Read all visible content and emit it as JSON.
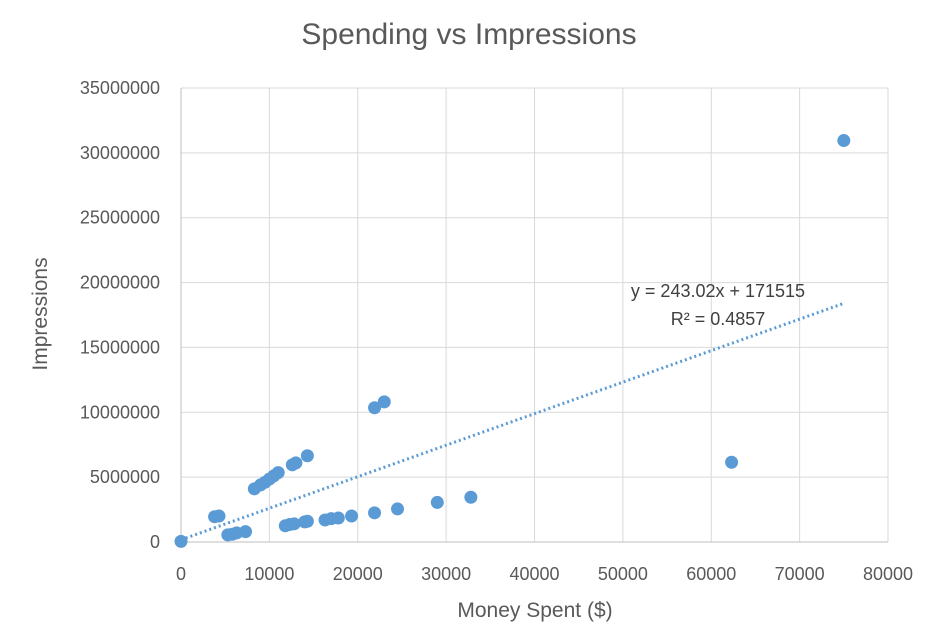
{
  "chart_data": {
    "type": "scatter",
    "title": "Spending vs Impressions",
    "xlabel": "Money Spent ($)",
    "ylabel": "Impressions",
    "xlim": [
      0,
      80000
    ],
    "ylim": [
      0,
      35000000
    ],
    "x_ticks": [
      "0",
      "10000",
      "20000",
      "30000",
      "40000",
      "50000",
      "60000",
      "70000",
      "80000"
    ],
    "y_ticks": [
      "0",
      "5000000",
      "10000000",
      "15000000",
      "20000000",
      "25000000",
      "30000000",
      "35000000"
    ],
    "grid": true,
    "legend": "none",
    "colors": {
      "points": "#5b9bd5",
      "trendline": "#5b9bd5",
      "grid": "#d9d9d9"
    },
    "points": [
      [
        0,
        50000
      ],
      [
        3800,
        1950000
      ],
      [
        4300,
        2000000
      ],
      [
        5300,
        550000
      ],
      [
        5800,
        600000
      ],
      [
        6300,
        700000
      ],
      [
        7300,
        800000
      ],
      [
        8300,
        4100000
      ],
      [
        9000,
        4400000
      ],
      [
        9500,
        4600000
      ],
      [
        10000,
        4850000
      ],
      [
        10500,
        5100000
      ],
      [
        11000,
        5350000
      ],
      [
        11800,
        1250000
      ],
      [
        12300,
        1350000
      ],
      [
        12800,
        1400000
      ],
      [
        12600,
        5950000
      ],
      [
        13000,
        6100000
      ],
      [
        14000,
        1550000
      ],
      [
        14300,
        1600000
      ],
      [
        14300,
        6650000
      ],
      [
        16300,
        1700000
      ],
      [
        17000,
        1800000
      ],
      [
        17800,
        1850000
      ],
      [
        19300,
        2000000
      ],
      [
        21900,
        2250000
      ],
      [
        21900,
        10350000
      ],
      [
        23000,
        10800000
      ],
      [
        24500,
        2550000
      ],
      [
        29000,
        3050000
      ],
      [
        32800,
        3450000
      ],
      [
        62300,
        6150000
      ],
      [
        75000,
        30950000
      ]
    ],
    "trendline": {
      "type": "linear",
      "slope": 243.02,
      "intercept": 171515,
      "x_range": [
        0,
        75000
      ],
      "equation": "y = 243.02x + 171515",
      "r_squared": "R² = 0.4857"
    }
  }
}
